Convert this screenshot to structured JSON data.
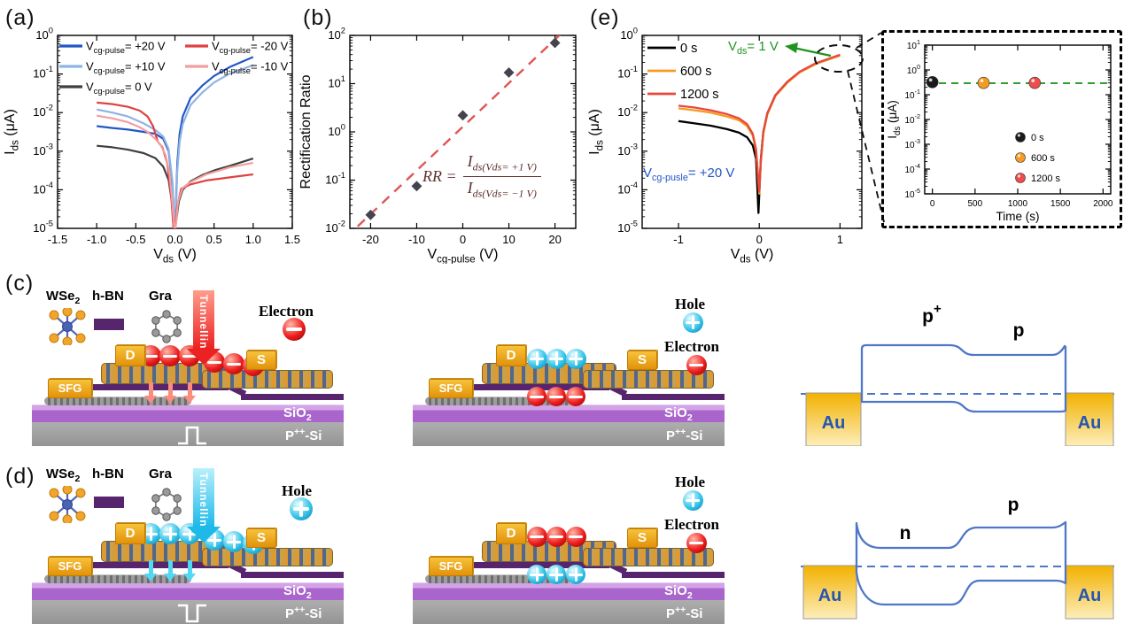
{
  "panel_labels": {
    "a": "(a)",
    "b": "(b)",
    "c": "(c)",
    "d": "(d)",
    "e": "(e)"
  },
  "device": {
    "wse2_base": "WSe",
    "wse2_sub": "2",
    "hbn": "h-BN",
    "gra": "Gra",
    "tunnelling": "Tunnelling",
    "electron": "Electron",
    "hole": "Hole",
    "drain": "D",
    "source": "S",
    "sfg": "SFG",
    "sio2_base": "SiO",
    "sio2_sub": "2",
    "psi_base": "P",
    "psi_sup": "++",
    "psi_rest": "-Si",
    "au": "Au"
  },
  "bands": {
    "c_left_base": "p",
    "c_left_sup": "+",
    "c_right": "p",
    "d_left": "n",
    "d_right": "p"
  },
  "colors": {
    "blue": "#2257c4",
    "light_blue": "#8fb3e4",
    "dark_gray": "#3f3f3f",
    "red": "#e04141",
    "pink": "#f29f9f",
    "orange": "#f59a23",
    "vermillion": "#e8483c",
    "green": "#1f941f",
    "band_blue": "#4f76c7",
    "gold": "#f0a81e",
    "hbn_purple": "#57256e",
    "sio2_purple": "#a965cb",
    "si_gray": "#9c9c9c",
    "fit_red": "#e05555"
  },
  "chart_data": [
    {
      "id": "a",
      "type": "line",
      "xlabel": {
        "base": "V",
        "sub": "ds",
        "rest": " (V)"
      },
      "ylabel": {
        "base": "I",
        "sub": "ds",
        "rest": " (μA)"
      },
      "xlim": [
        -1.5,
        1.5
      ],
      "xticks": [
        -1.5,
        -1.0,
        -0.5,
        0.0,
        0.5,
        1.0,
        1.5
      ],
      "xtick_decimals": 1,
      "ylog_top": 0,
      "ylog_bottom": -5,
      "grid": false,
      "legend_position": "top-left-inside",
      "series": [
        {
          "legend": {
            "base": "V",
            "sub": "cg-pulse",
            "rest": "= +20 V"
          },
          "color": "#2257c4",
          "x": [
            -1,
            -0.8,
            -0.6,
            -0.4,
            -0.25,
            -0.15,
            -0.08,
            -0.03,
            0,
            0.03,
            0.06,
            0.1,
            0.2,
            0.35,
            0.5,
            0.7,
            1
          ],
          "logy": [
            -2.35,
            -2.4,
            -2.44,
            -2.5,
            -2.55,
            -2.68,
            -3.0,
            -3.9,
            -5.2,
            -3.3,
            -2.55,
            -2.1,
            -1.62,
            -1.3,
            -1.05,
            -0.82,
            -0.56
          ]
        },
        {
          "legend": {
            "base": "V",
            "sub": "cg-pulse",
            "rest": "= +10 V"
          },
          "color": "#8fb3e4",
          "x": [
            -1,
            -0.8,
            -0.6,
            -0.4,
            -0.25,
            -0.15,
            -0.08,
            -0.03,
            0,
            0.03,
            0.06,
            0.1,
            0.2,
            0.35,
            0.5,
            0.7,
            1
          ],
          "logy": [
            -1.92,
            -2.0,
            -2.1,
            -2.28,
            -2.45,
            -2.62,
            -2.95,
            -3.8,
            -5.2,
            -3.5,
            -2.75,
            -2.3,
            -1.8,
            -1.48,
            -1.22,
            -0.99,
            -0.77
          ]
        },
        {
          "legend": {
            "base": "V",
            "sub": "cg-pulse",
            "rest": "= 0 V"
          },
          "color": "#3f3f3f",
          "x": [
            -1,
            -0.8,
            -0.6,
            -0.4,
            -0.25,
            -0.15,
            -0.08,
            -0.04,
            -0.01,
            0.02,
            0.05,
            0.1,
            0.2,
            0.35,
            0.5,
            0.7,
            1
          ],
          "logy": [
            -2.86,
            -2.9,
            -2.96,
            -3.05,
            -3.18,
            -3.4,
            -3.75,
            -4.3,
            -5.2,
            -4.75,
            -4.3,
            -4.0,
            -3.78,
            -3.62,
            -3.5,
            -3.38,
            -3.19
          ]
        },
        {
          "legend": {
            "base": "V",
            "sub": "cg-pulse",
            "rest": "= -20 V"
          },
          "color": "#e04141",
          "x": [
            -1,
            -0.8,
            -0.6,
            -0.45,
            -0.35,
            -0.28,
            -0.22,
            -0.16,
            -0.1,
            -0.05,
            -0.01,
            0.03,
            0.08,
            0.2,
            0.4,
            0.7,
            1
          ],
          "logy": [
            -1.74,
            -1.78,
            -1.85,
            -1.95,
            -2.1,
            -2.35,
            -2.75,
            -2.9,
            -3.3,
            -4.1,
            -5.2,
            -4.4,
            -3.97,
            -3.86,
            -3.76,
            -3.68,
            -3.6
          ]
        },
        {
          "legend": {
            "base": "V",
            "sub": "cg-pulse",
            "rest": "= -10 V"
          },
          "color": "#f29f9f",
          "x": [
            -1,
            -0.8,
            -0.6,
            -0.45,
            -0.35,
            -0.25,
            -0.18,
            -0.12,
            -0.07,
            -0.03,
            0,
            0.04,
            0.1,
            0.2,
            0.4,
            0.7,
            1
          ],
          "logy": [
            -2.08,
            -2.15,
            -2.25,
            -2.38,
            -2.5,
            -2.68,
            -2.85,
            -3.1,
            -3.55,
            -4.4,
            -5.2,
            -4.3,
            -3.95,
            -3.8,
            -3.6,
            -3.42,
            -3.3
          ]
        }
      ]
    },
    {
      "id": "b",
      "type": "scatter",
      "ylabel_text": "Rectification Ratio",
      "xlabel": {
        "base": "V",
        "sub": "cg-pulse",
        "rest": " (V)"
      },
      "xlim": [
        -24.5,
        24.5
      ],
      "xticks": [
        -20,
        -10,
        0,
        10,
        20
      ],
      "ylog_top": 2,
      "ylog_bottom": -2,
      "points": {
        "x": [
          -20,
          -10,
          0,
          10,
          20
        ],
        "y": [
          0.019,
          0.075,
          2.2,
          17,
          70
        ],
        "color": "#44444c",
        "marker": "diamond"
      },
      "fit": {
        "x": [
          -22.8,
          21.8
        ],
        "y": [
          0.011,
          120
        ],
        "color": "#e05555",
        "style": "dashed"
      },
      "formula": {
        "lhs": "RR",
        "eq": "=",
        "num_base": "I",
        "num_sub": "ds(Vds= +1 V)",
        "den_base": "I",
        "den_sub": "ds(Vds= −1 V)"
      }
    },
    {
      "id": "e",
      "type": "line",
      "xlabel": {
        "base": "V",
        "sub": "ds",
        "rest": " (V)"
      },
      "ylabel": {
        "base": "I",
        "sub": "ds",
        "rest": " (μA)"
      },
      "xlim": [
        -1.45,
        1.27
      ],
      "xticks": [
        -1,
        0,
        1
      ],
      "ylog_top": 0,
      "ylog_bottom": -5,
      "series": [
        {
          "legend_text": "0 s",
          "color": "#000000",
          "x": [
            -1,
            -0.8,
            -0.6,
            -0.4,
            -0.25,
            -0.15,
            -0.08,
            -0.04,
            -0.01,
            0.02,
            0.05,
            0.1,
            0.2,
            0.35,
            0.5,
            0.7,
            1
          ],
          "logy": [
            -2.22,
            -2.28,
            -2.34,
            -2.43,
            -2.52,
            -2.64,
            -2.85,
            -3.2,
            -4.6,
            -3.2,
            -2.5,
            -2.02,
            -1.55,
            -1.2,
            -0.95,
            -0.73,
            -0.52
          ]
        },
        {
          "legend_text": "600 s",
          "color": "#f59a23",
          "x": [
            -1,
            -0.8,
            -0.6,
            -0.4,
            -0.25,
            -0.15,
            -0.08,
            -0.04,
            0,
            0.02,
            0.05,
            0.1,
            0.2,
            0.35,
            0.5,
            0.7,
            1
          ],
          "logy": [
            -1.89,
            -1.94,
            -2.0,
            -2.1,
            -2.2,
            -2.35,
            -2.6,
            -3.0,
            -4.1,
            -3.3,
            -2.55,
            -2.05,
            -1.57,
            -1.22,
            -0.96,
            -0.74,
            -0.52
          ]
        },
        {
          "legend_text": "1200 s",
          "color": "#e8483c",
          "x": [
            -1,
            -0.8,
            -0.6,
            -0.4,
            -0.25,
            -0.15,
            -0.08,
            -0.04,
            0,
            0.02,
            0.05,
            0.1,
            0.2,
            0.35,
            0.5,
            0.7,
            1
          ],
          "logy": [
            -1.82,
            -1.87,
            -1.94,
            -2.04,
            -2.15,
            -2.3,
            -2.55,
            -2.95,
            -4.05,
            -3.25,
            -2.5,
            -2.02,
            -1.55,
            -1.2,
            -0.94,
            -0.72,
            -0.5
          ]
        }
      ],
      "annotations": {
        "vds": {
          "base": "V",
          "sub": "ds",
          "rest": "= 1 V",
          "color": "#1f941f"
        },
        "vcg": {
          "base": "V",
          "sub": "cg-pusle",
          "rest": "= +20 V",
          "color": "#2257c4"
        }
      }
    },
    {
      "id": "e_inset",
      "type": "scatter",
      "xlabel_text": "Time (s)",
      "ylabel": {
        "base": "I",
        "sub": "ds",
        "rest": " (μA)"
      },
      "xlim": [
        -90,
        2090
      ],
      "xticks": [
        0,
        500,
        1000,
        1500,
        2000
      ],
      "ylog_top": 1,
      "ylog_bottom": -5,
      "points": [
        {
          "label": "0 s",
          "color": "#1a1a1a",
          "x": 0,
          "y": 0.32
        },
        {
          "label": "600 s",
          "color": "#f59a23",
          "x": 600,
          "y": 0.3
        },
        {
          "label": "1200 s",
          "color": "#ef4c4c",
          "x": 1200,
          "y": 0.3
        }
      ],
      "trend": {
        "y": 0.29,
        "color": "#2f9e2f",
        "style": "dashed"
      }
    }
  ]
}
